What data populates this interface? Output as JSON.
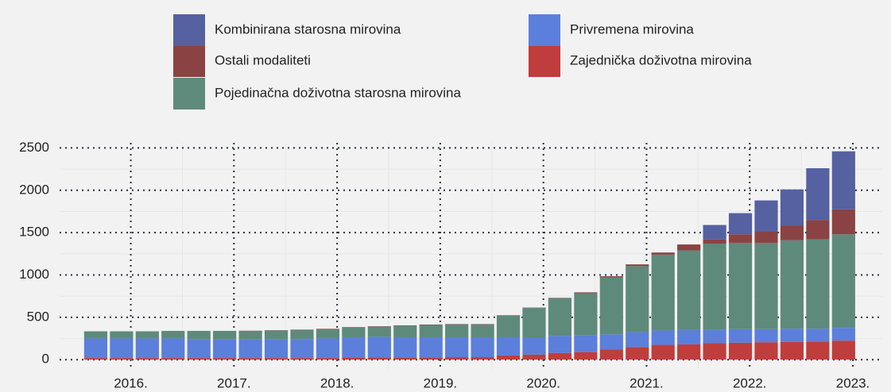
{
  "chart_data": {
    "type": "stacked_bar",
    "x": [
      0,
      1,
      2,
      3,
      4,
      5,
      6,
      7,
      8,
      9,
      10,
      11,
      12,
      13,
      14,
      15,
      16,
      17,
      18,
      19,
      20,
      21,
      22,
      23,
      24,
      25,
      26,
      27,
      28,
      29
    ],
    "series": [
      {
        "name": "Zajednička doživotna mirovina",
        "color": "#c03d3d",
        "values": [
          20,
          20,
          20,
          20,
          20,
          20,
          20,
          20,
          20,
          20,
          25,
          25,
          25,
          25,
          30,
          30,
          50,
          60,
          80,
          90,
          120,
          150,
          175,
          180,
          195,
          200,
          205,
          210,
          215,
          225
        ]
      },
      {
        "name": "Privremena mirovina",
        "color": "#5b7fdb",
        "values": [
          230,
          230,
          230,
          230,
          225,
          220,
          220,
          225,
          225,
          230,
          240,
          245,
          240,
          240,
          235,
          235,
          215,
          200,
          200,
          200,
          180,
          175,
          170,
          170,
          160,
          160,
          155,
          155,
          150,
          150
        ]
      },
      {
        "name": "Pojedinačna doživotna starosna mirovina",
        "color": "#5e8a7c",
        "values": [
          85,
          85,
          85,
          90,
          95,
          100,
          100,
          100,
          105,
          110,
          115,
          120,
          135,
          145,
          150,
          150,
          255,
          350,
          445,
          495,
          670,
          780,
          895,
          940,
          1015,
          1020,
          1020,
          1045,
          1055,
          1105
        ]
      },
      {
        "name": "Ostali modaliteti",
        "color": "#8b4242",
        "values": [
          0,
          0,
          0,
          0,
          0,
          0,
          2,
          3,
          5,
          5,
          5,
          5,
          5,
          5,
          5,
          5,
          5,
          5,
          5,
          10,
          15,
          20,
          25,
          70,
          50,
          100,
          135,
          175,
          230,
          295
        ]
      },
      {
        "name": "Kombinirana starosna mirovina",
        "color": "#5561a0",
        "values": [
          0,
          0,
          0,
          0,
          0,
          0,
          0,
          0,
          0,
          0,
          0,
          0,
          0,
          0,
          0,
          0,
          0,
          0,
          0,
          0,
          0,
          0,
          0,
          0,
          170,
          250,
          365,
          425,
          610,
          685
        ]
      }
    ],
    "xlim": [
      -1.4,
      30.5
    ],
    "xticks": [
      {
        "value": 1.36,
        "label": "2016."
      },
      {
        "value": 5.36,
        "label": "2017."
      },
      {
        "value": 9.36,
        "label": "2018."
      },
      {
        "value": 13.36,
        "label": "2019."
      },
      {
        "value": 17.36,
        "label": "2020."
      },
      {
        "value": 21.36,
        "label": "2021."
      },
      {
        "value": 25.36,
        "label": "2022."
      },
      {
        "value": 29.36,
        "label": "2023."
      }
    ],
    "ylim": [
      -110,
      2560
    ],
    "yticks": [
      0,
      500,
      1000,
      1500,
      2000,
      2500
    ],
    "grid": true
  }
}
